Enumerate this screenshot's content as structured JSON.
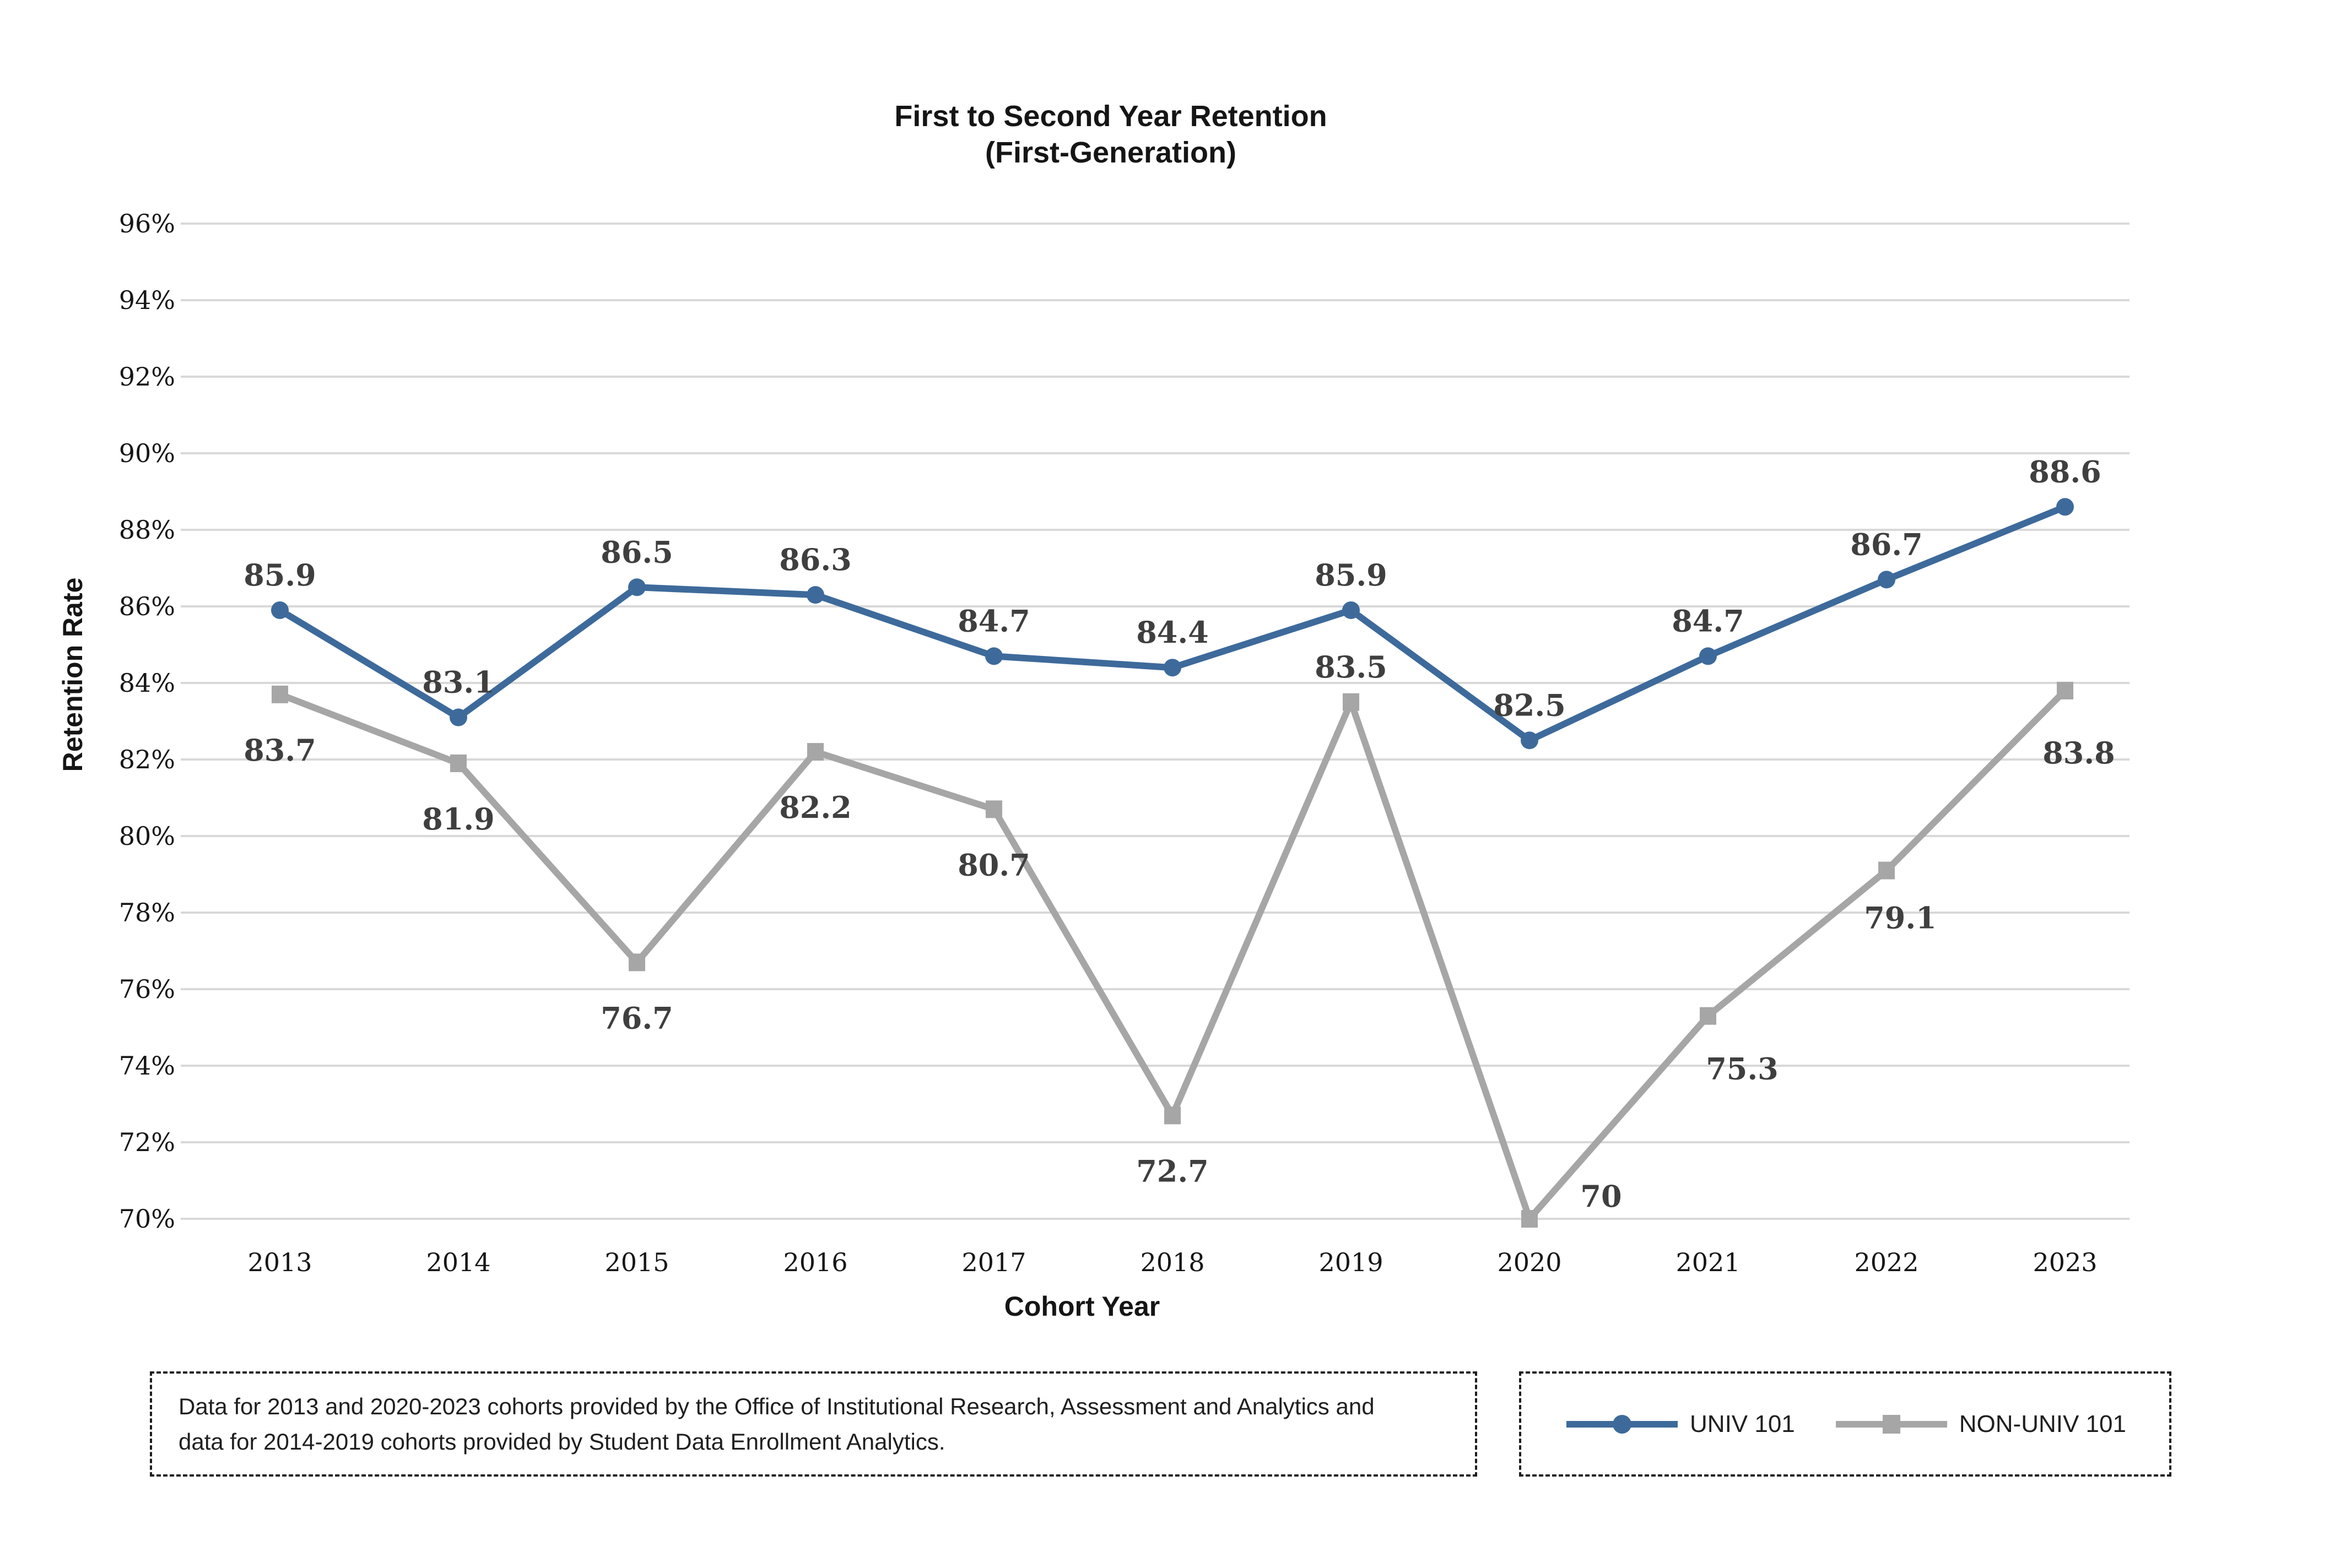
{
  "title": {
    "line1": "First to Second Year Retention",
    "line2": "(First-Generation)"
  },
  "y_axis": {
    "label": "Retention Rate",
    "tick_suffix": "%",
    "min": 70,
    "max": 96,
    "step": 2,
    "ticks": [
      "96%",
      "94%",
      "92%",
      "90%",
      "88%",
      "86%",
      "84%",
      "82%",
      "80%",
      "78%",
      "76%",
      "74%",
      "72%",
      "70%"
    ]
  },
  "x_axis": {
    "label": "Cohort Year",
    "categories": [
      "2013",
      "2014",
      "2015",
      "2016",
      "2017",
      "2018",
      "2019",
      "2020",
      "2021",
      "2022",
      "2023"
    ]
  },
  "footnote": "Data for 2013 and 2020-2023 cohorts provided by the Office of Institutional Research, Assessment and Analytics and data for 2014-2019 cohorts provided by Student Data Enrollment Analytics.",
  "legend": {
    "items": [
      {
        "label": "UNIV 101",
        "marker": "circle",
        "color": "#3e6a9b"
      },
      {
        "label": "NON-UNIV 101",
        "marker": "square",
        "color": "#a6a6a6"
      }
    ]
  },
  "colors": {
    "univ_line": "#3e6a9b",
    "non_univ_line": "#a6a6a6",
    "data_label": "#3f3f3f",
    "gridline": "#d9d9d9",
    "text": "#161616"
  },
  "chart_data": {
    "type": "line",
    "title": "First to Second Year Retention (First-Generation)",
    "xlabel": "Cohort Year",
    "ylabel": "Retention Rate",
    "ylim": [
      70,
      96
    ],
    "y_step": 2,
    "grid": true,
    "legend_position": "bottom-right",
    "categories": [
      "2013",
      "2014",
      "2015",
      "2016",
      "2017",
      "2018",
      "2019",
      "2020",
      "2021",
      "2022",
      "2023"
    ],
    "series": [
      {
        "name": "UNIV 101",
        "color": "#3e6a9b",
        "marker": "circle",
        "values": [
          85.9,
          83.1,
          86.5,
          86.3,
          84.7,
          84.4,
          85.9,
          82.5,
          84.7,
          86.7,
          88.6
        ],
        "labels": [
          "85.9",
          "83.1",
          "86.5",
          "86.3",
          "84.7",
          "84.4",
          "85.9",
          "82.5",
          "84.7",
          "86.7",
          "88.6"
        ]
      },
      {
        "name": "NON-UNIV 101",
        "color": "#a6a6a6",
        "marker": "square",
        "values": [
          83.7,
          81.9,
          76.7,
          82.2,
          80.7,
          72.7,
          83.5,
          70,
          75.3,
          79.1,
          83.8
        ],
        "labels": [
          "83.7",
          "81.9",
          "76.7",
          "82.2",
          "80.7",
          "72.7",
          "83.5",
          "70",
          "75.3",
          "79.1",
          "83.8"
        ]
      }
    ]
  }
}
